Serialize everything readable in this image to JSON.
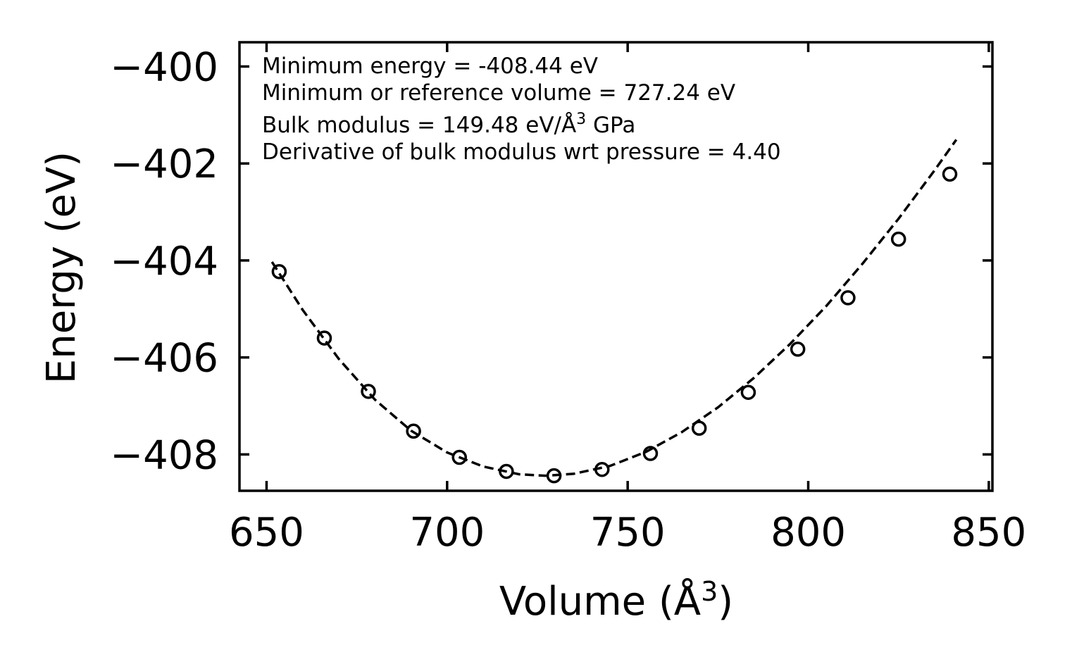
{
  "chart_data": {
    "type": "scatter",
    "title": "",
    "xlabel": {
      "base": "Volume (Å",
      "sup": "3",
      "close": ")"
    },
    "ylabel": "Energy (eV)",
    "xlim": [
      642.5,
      851
    ],
    "ylim": [
      -408.75,
      -399.5
    ],
    "x_ticks": [
      650,
      700,
      750,
      800,
      850
    ],
    "x_tick_labels": [
      "650",
      "700",
      "750",
      "800",
      "850"
    ],
    "y_ticks": [
      -400,
      -402,
      -404,
      -406,
      -408
    ],
    "y_tick_labels": [
      "−400",
      "−402",
      "−404",
      "−406",
      "−408"
    ],
    "grid": false,
    "series": [
      {
        "name": "data",
        "style": "open-circle",
        "x": [
          653.5,
          666,
          678.2,
          690.7,
          703.4,
          716.4,
          729.6,
          742.9,
          756.3,
          769.8,
          783.4,
          797.1,
          811,
          825,
          839.2
        ],
        "y": [
          -404.23,
          -405.6,
          -406.7,
          -407.52,
          -408.06,
          -408.35,
          -408.44,
          -408.31,
          -407.98,
          -407.46,
          -406.72,
          -405.83,
          -404.77,
          -403.56,
          -402.22
        ]
      },
      {
        "name": "fit",
        "style": "dashed-line",
        "x": [
          651.5,
          660,
          670,
          680,
          690,
          700,
          710,
          720,
          727.24,
          735,
          745,
          755,
          765,
          775,
          785,
          795,
          805,
          815,
          825,
          835,
          841
        ],
        "y": [
          -404.03,
          -405.02,
          -406.03,
          -406.87,
          -407.51,
          -407.96,
          -408.25,
          -408.41,
          -408.44,
          -408.4,
          -408.24,
          -407.95,
          -407.54,
          -407.03,
          -406.42,
          -405.72,
          -404.94,
          -404.07,
          -403.14,
          -402.14,
          -401.51
        ]
      }
    ],
    "annotations": {
      "line1": "Minimum energy = -408.44 eV",
      "line2": "Minimum or reference volume = 727.24 eV",
      "line3_pre": "Bulk modulus = 149.48 eV/Å",
      "line3_sup": "3",
      "line3_post": " GPa",
      "line4": "Derivative of bulk modulus wrt pressure = 4.40"
    },
    "colors": {
      "axes": "#000000",
      "series": "#000000",
      "background": "#ffffff"
    }
  }
}
